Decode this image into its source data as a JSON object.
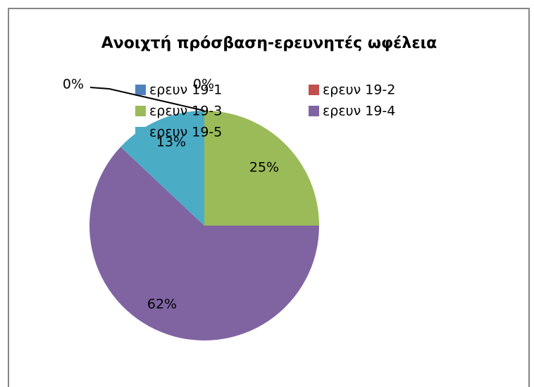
{
  "chart_data": {
    "type": "pie",
    "title": "Ανοιχτή πρόσβαση-ερευνητές ωφέλεια",
    "categories": [
      "ερευν 19-1",
      "ερευν 19-2",
      "ερευν 19-3",
      "ερευν 19-4",
      "ερευν 19-5"
    ],
    "values": [
      0,
      0,
      25,
      62,
      13
    ],
    "value_labels": [
      "0%",
      "0%",
      "25%",
      "62%",
      "13%"
    ],
    "colors": [
      "#4f81bd",
      "#c0504d",
      "#9bbb59",
      "#8064a2",
      "#4bacc6"
    ],
    "legend": "top"
  }
}
